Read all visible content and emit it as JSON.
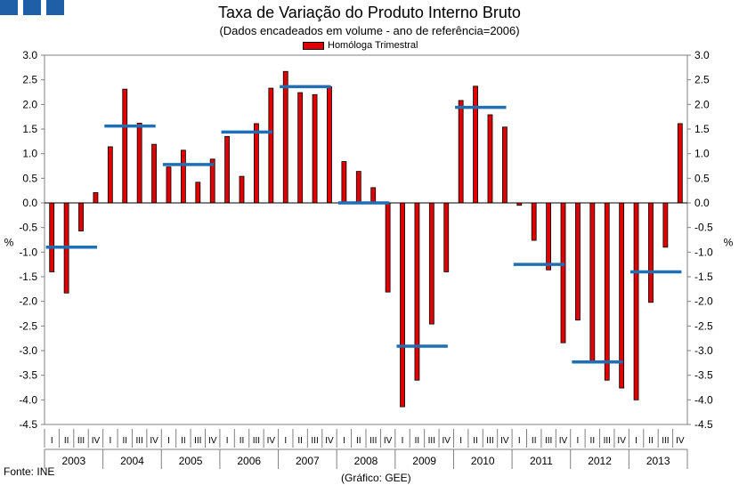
{
  "header": {
    "title": "Taxa de Variação do Produto Interno Bruto",
    "subtitle": "(Dados encadeados em volume - ano de referência=2006)"
  },
  "footer": {
    "source": "Fonte: INE",
    "credit": "(Gráfico: GEE)"
  },
  "logo": {
    "color": "#1f5fa8",
    "squares": 3
  },
  "chart_data": {
    "type": "bar",
    "title": "Taxa de Variação do Produto Interno Bruto",
    "subtitle": "(Dados encadeados em volume - ano de referência=2006)",
    "ylabel": "%",
    "ylim": [
      -4.5,
      3.0
    ],
    "yticks": [
      3.0,
      2.5,
      2.0,
      1.5,
      1.0,
      0.5,
      0.0,
      -0.5,
      -1.0,
      -1.5,
      -2.0,
      -2.5,
      -3.0,
      -3.5,
      -4.0,
      -4.5
    ],
    "ytick_labels": [
      "3.0",
      "2.5",
      "2.0",
      "1.5",
      "1.0",
      "0.5",
      "0.0",
      "-0.5",
      "-1.0",
      "-1.5",
      "-2.0",
      "-2.5",
      "-3.0",
      "-3.5",
      "-4.0",
      "-4.5"
    ],
    "grid": false,
    "legend_position": "top-center",
    "quarter_labels": [
      "I",
      "II",
      "III",
      "IV"
    ],
    "years": [
      "2003",
      "2004",
      "2005",
      "2006",
      "2007",
      "2008",
      "2009",
      "2010",
      "2011",
      "2012",
      "2013"
    ],
    "series": [
      {
        "name": "Homóloga Trimestral",
        "type": "bar",
        "color": "#e00000",
        "values": [
          -1.4,
          -1.83,
          -0.57,
          0.21,
          1.14,
          2.31,
          1.62,
          1.19,
          0.73,
          1.07,
          0.42,
          0.89,
          1.35,
          0.54,
          1.61,
          2.33,
          2.67,
          2.24,
          2.2,
          2.36,
          0.84,
          0.64,
          0.31,
          -1.81,
          -4.14,
          -3.6,
          -2.46,
          -1.4,
          2.08,
          2.37,
          1.79,
          1.54,
          -0.05,
          -0.76,
          -1.36,
          -2.84,
          -2.38,
          -3.25,
          -3.6,
          -3.76,
          -4.0,
          -2.02,
          -0.9,
          1.61
        ]
      },
      {
        "name": "",
        "type": "annual-line",
        "color": "#1f6fb5",
        "values": [
          -0.9,
          1.56,
          0.78,
          1.44,
          2.36,
          0.0,
          -2.91,
          1.94,
          -1.25,
          -3.23,
          -1.4
        ]
      }
    ]
  }
}
